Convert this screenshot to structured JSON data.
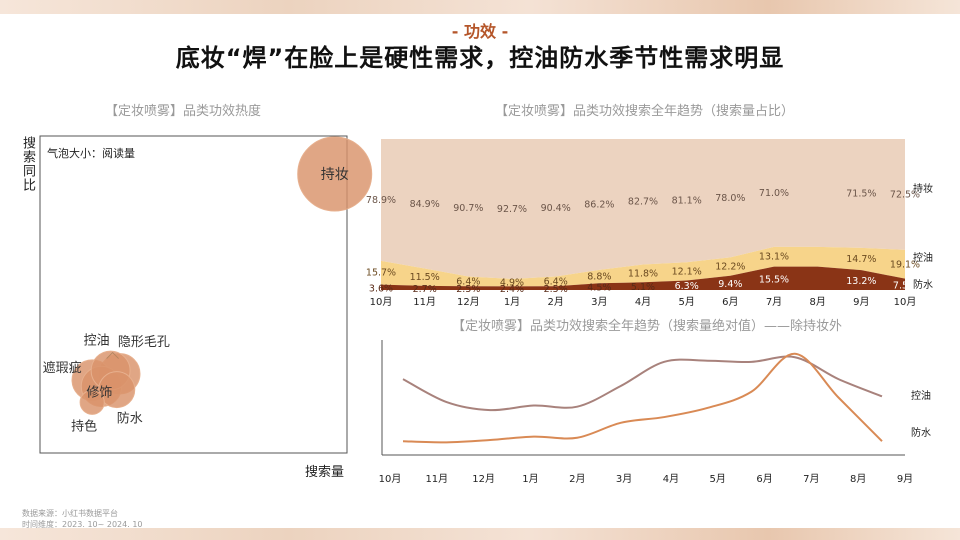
{
  "header": {
    "tag": "- 功效 -",
    "title": "底妆“焊”在脸上是硬性需求，控油防水季节性需求明显"
  },
  "source": {
    "line1": "数据来源：小红书数据平台",
    "line2": "时间维度：2023. 10~ 2024. 10"
  },
  "chart_data": [
    {
      "type": "scatter",
      "title": "【定妆喷雾】品类功效热度",
      "xlabel": "搜索量",
      "ylabel": "搜索同比",
      "note": "气泡大小：阅读量",
      "points": [
        {
          "name": "持妆",
          "x": 96,
          "y": 88,
          "size": 100
        },
        {
          "name": "控油",
          "x": 23,
          "y": 26,
          "size": 22
        },
        {
          "name": "隐形毛孔",
          "x": 26,
          "y": 25,
          "size": 24
        },
        {
          "name": "遮瑕疵",
          "x": 17,
          "y": 23,
          "size": 24
        },
        {
          "name": "修饰",
          "x": 20,
          "y": 21,
          "size": 24
        },
        {
          "name": "防水",
          "x": 25,
          "y": 20,
          "size": 18
        },
        {
          "name": "持色",
          "x": 17,
          "y": 16,
          "size": 6
        }
      ]
    },
    {
      "type": "area",
      "title": "【定妆喷雾】品类功效搜索全年趋势（搜索量占比）",
      "categories": [
        "10月",
        "11月",
        "12月",
        "1月",
        "2月",
        "3月",
        "4月",
        "5月",
        "6月",
        "7月",
        "8月",
        "9月",
        "10月"
      ],
      "series": [
        {
          "name": "防水",
          "values": [
            3.6,
            2.7,
            2.5,
            2.4,
            2.5,
            4.5,
            5.1,
            6.3,
            9.4,
            15.5,
            15.5,
            13.2,
            7.5
          ]
        },
        {
          "name": "控油",
          "values": [
            15.7,
            11.5,
            6.4,
            4.9,
            6.4,
            8.8,
            11.8,
            12.1,
            12.2,
            13.1,
            13.1,
            14.7,
            19.1
          ]
        },
        {
          "name": "持妆",
          "values": [
            78.9,
            84.9,
            90.7,
            92.7,
            90.4,
            86.2,
            82.7,
            81.1,
            78.0,
            71.0,
            71.0,
            71.5,
            72.5
          ]
        }
      ],
      "value_labels": {
        "防水": [
          "3.6%",
          "2.7%",
          "2.5%",
          "2.4%",
          "2.5%",
          "4.5%",
          "5.1%",
          "6.3%",
          "9.4%",
          "15.5%",
          "",
          "13.2%",
          "7.5%"
        ],
        "控油": [
          "15.7%",
          "11.5%",
          "6.4%",
          "4.9%",
          "6.4%",
          "8.8%",
          "11.8%",
          "12.1%",
          "12.2%",
          "13.1%",
          "",
          "14.7%",
          "19.1%"
        ],
        "持妆": [
          "78.9%",
          "84.9%",
          "90.7%",
          "92.7%",
          "90.4%",
          "86.2%",
          "82.7%",
          "81.1%",
          "78.0%",
          "71.0%",
          "",
          "71.5%",
          "72.5%"
        ]
      },
      "colors": {
        "持妆": "#ecd3c0",
        "控油": "#f7d48a",
        "防水": "#8a3416"
      },
      "ylim": [
        0,
        100
      ]
    },
    {
      "type": "line",
      "title": "【定妆喷雾】品类功效搜索全年趋势（搜索量绝对值）——除持妆外",
      "categories": [
        "10月",
        "11月",
        "12月",
        "1月",
        "2月",
        "3月",
        "4月",
        "5月",
        "6月",
        "7月",
        "8月",
        "9月"
      ],
      "series": [
        {
          "name": "控油",
          "color": "#a8827c",
          "values": [
            66,
            46,
            39,
            43,
            42,
            60,
            81,
            82,
            81,
            85,
            66,
            51
          ]
        },
        {
          "name": "防水",
          "color": "#d98a55",
          "values": [
            12,
            11,
            13,
            16,
            15,
            28,
            33,
            41,
            55,
            88,
            50,
            12
          ]
        }
      ],
      "ylim": [
        0,
        100
      ]
    }
  ]
}
